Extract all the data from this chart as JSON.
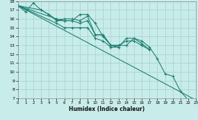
{
  "xlabel": "Humidex (Indice chaleur)",
  "xlim": [
    0,
    23
  ],
  "ylim": [
    7,
    18
  ],
  "xticks": [
    0,
    1,
    2,
    3,
    4,
    5,
    6,
    7,
    8,
    9,
    10,
    11,
    12,
    13,
    14,
    15,
    16,
    17,
    18,
    19,
    20,
    21,
    22,
    23
  ],
  "yticks": [
    7,
    8,
    9,
    10,
    11,
    12,
    13,
    14,
    15,
    16,
    17,
    18
  ],
  "bg_color": "#c8ecea",
  "grid_color": "#aad4d0",
  "line_color": "#1f7e70",
  "lines": [
    {
      "x": [
        0,
        1,
        2,
        3,
        4,
        5,
        6,
        7,
        8,
        9,
        10,
        11,
        12,
        13,
        14,
        15,
        16,
        17
      ],
      "y": [
        17.5,
        16.8,
        17.8,
        17.0,
        16.5,
        15.9,
        16.0,
        16.0,
        15.8,
        16.3,
        14.2,
        14.2,
        13.0,
        13.0,
        13.5,
        13.5,
        13.0,
        12.5
      ]
    },
    {
      "x": [
        0,
        3,
        4,
        5,
        6,
        7,
        8,
        9,
        10,
        11,
        12,
        13,
        14,
        15,
        16,
        17
      ],
      "y": [
        17.5,
        17.0,
        16.5,
        15.8,
        15.8,
        15.8,
        16.5,
        16.5,
        15.5,
        14.0,
        13.0,
        13.0,
        13.0,
        13.8,
        13.2,
        12.5
      ]
    },
    {
      "x": [
        0,
        5,
        6,
        7,
        8,
        9,
        10,
        11,
        12,
        13
      ],
      "y": [
        17.5,
        16.0,
        15.8,
        15.8,
        15.5,
        15.8,
        14.2,
        14.2,
        13.0,
        12.8
      ]
    },
    {
      "x": [
        0,
        23
      ],
      "y": [
        17.5,
        6.8
      ],
      "no_marker": true
    },
    {
      "x": [
        0,
        5,
        6,
        7,
        8,
        9,
        10,
        11,
        12,
        13,
        14,
        15,
        16,
        17,
        18,
        19,
        20,
        21,
        22,
        23
      ],
      "y": [
        17.5,
        15.5,
        15.0,
        15.0,
        15.0,
        15.0,
        13.8,
        13.5,
        12.8,
        12.8,
        13.8,
        13.8,
        13.5,
        12.8,
        11.5,
        9.8,
        9.5,
        7.8,
        6.8,
        6.8
      ]
    }
  ]
}
